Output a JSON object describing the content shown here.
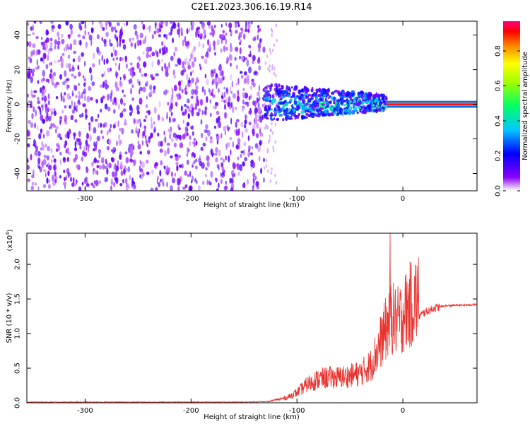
{
  "title": "C2E1.2023.306.16.19.R14",
  "colors": {
    "snr_line": "#e8332f",
    "noise_purple": "#7a1ee6",
    "background": "#ffffff"
  },
  "chart_data": [
    {
      "type": "heatmap",
      "title": "C2E1.2023.306.16.19.R14",
      "xlabel": "Height of straight line (km)",
      "ylabel": "Frequency (Hz)",
      "xlim": [
        -355,
        70
      ],
      "ylim": [
        -50,
        48
      ],
      "x_ticks": [
        -300,
        -200,
        -100,
        0
      ],
      "x_tick_labels": [
        "-300",
        "-200",
        "-100",
        "0"
      ],
      "y_ticks": [
        -40,
        -20,
        0,
        20,
        40
      ],
      "y_tick_labels": [
        "-40",
        "-20",
        "0",
        "20",
        "40"
      ],
      "colorbar": {
        "label": "Normalized spectral amplitude",
        "range": [
          0,
          0.97
        ],
        "ticks": [
          0.0,
          0.2,
          0.4,
          0.6,
          0.8
        ],
        "tick_labels": [
          "0.0",
          "0.2",
          "0.4",
          "0.6",
          "0.8"
        ]
      },
      "regions": [
        {
          "x_range": [
            -355,
            -131
          ],
          "description": "broadband noise",
          "freq_spread": [
            -50,
            48
          ],
          "amplitude": 0.1
        },
        {
          "x_range": [
            -131,
            -15
          ],
          "description": "signal",
          "freq_spread": [
            -10,
            12
          ],
          "amplitude": 0.35
        },
        {
          "x_range": [
            -15,
            70
          ],
          "description": "strong signal",
          "freq_spread": [
            -2,
            2
          ],
          "amplitude": 0.9
        }
      ]
    },
    {
      "type": "line",
      "xlabel": "Height of straight line (km)",
      "ylabel": "SNR (10 * v/v)",
      "y_multiplier": "(x10^4)",
      "xlim": [
        -355,
        70
      ],
      "ylim": [
        0,
        2.45
      ],
      "x_ticks": [
        -300,
        -200,
        -100,
        0
      ],
      "x_tick_labels": [
        "-300",
        "-200",
        "-100",
        "0"
      ],
      "y_ticks": [
        0.0,
        0.5,
        1.0,
        1.5,
        2.0
      ],
      "y_tick_labels": [
        "0.0",
        "0.5",
        "1.0",
        "1.5",
        "2.0"
      ],
      "series": [
        {
          "x": [
            -355,
            -300,
            -250,
            -200,
            -150,
            -125,
            -110,
            -100,
            -90,
            -80,
            -70,
            -60,
            -50,
            -40,
            -30,
            -25,
            -20,
            -15,
            -12,
            -10,
            -5,
            0,
            10,
            20,
            30,
            40,
            50,
            60,
            70
          ],
          "y": [
            0.01,
            0.01,
            0.01,
            0.01,
            0.01,
            0.02,
            0.06,
            0.12,
            0.22,
            0.28,
            0.3,
            0.3,
            0.32,
            0.35,
            0.45,
            0.6,
            0.75,
            0.9,
            1.05,
            1.0,
            0.95,
            1.05,
            1.2,
            1.3,
            1.37,
            1.4,
            1.41,
            1.41,
            1.42
          ]
        }
      ],
      "spike": {
        "x": -12,
        "y": 2.45
      }
    }
  ]
}
